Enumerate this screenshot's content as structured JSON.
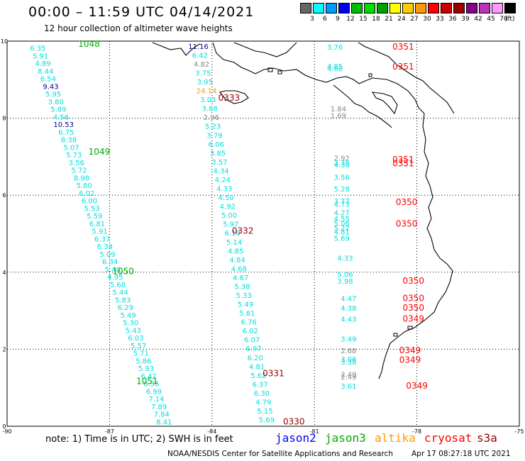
{
  "header": {
    "title": "00:00 – 11:59 UTC 04/14/2021",
    "subtitle": "12 hour collection of altimeter wave heights"
  },
  "legend": {
    "unit": "(ft)",
    "swatches": [
      {
        "label": "3",
        "color": "#666666"
      },
      {
        "label": "6",
        "color": "#00ffff"
      },
      {
        "label": "9",
        "color": "#0099ff"
      },
      {
        "label": "12",
        "color": "#0000ee"
      },
      {
        "label": "15",
        "color": "#00bb00"
      },
      {
        "label": "18",
        "color": "#00dd00"
      },
      {
        "label": "21",
        "color": "#00a000"
      },
      {
        "label": "24",
        "color": "#ffff00"
      },
      {
        "label": "27",
        "color": "#ffcc00"
      },
      {
        "label": "30",
        "color": "#ff9900"
      },
      {
        "label": "33",
        "color": "#ff0000"
      },
      {
        "label": "36",
        "color": "#cc0000"
      },
      {
        "label": "39",
        "color": "#990000"
      },
      {
        "label": "42",
        "color": "#880088"
      },
      {
        "label": "45",
        "color": "#bb33bb"
      },
      {
        "label": "70",
        "color": "#ff99ff"
      },
      {
        "label": "",
        "color": "#000000"
      }
    ]
  },
  "footer": {
    "note": "note: 1) Time is in UTC; 2) SWH is in feet",
    "missions": [
      {
        "label": "jason2",
        "color": "#0000ff"
      },
      {
        "label": "jason3",
        "color": "#00aa00"
      },
      {
        "label": "altika",
        "color": "#ff9900"
      },
      {
        "label": "cryosat",
        "color": "#ff0000"
      },
      {
        "label": "s3a",
        "color": "#990000"
      }
    ],
    "credit": "NOAA/NESDIS Center for Satellite Applications and Research",
    "timestamp": "Apr 17 08:27:18 UTC 2021"
  },
  "chart_data": {
    "type": "scatter",
    "title": "00:00 – 11:59 UTC 04/14/2021",
    "xlim": [
      -90,
      -75
    ],
    "ylim": [
      0,
      10
    ],
    "xticks": [
      -90,
      -87,
      -84,
      -81,
      -78,
      -75
    ],
    "yticks": [
      0,
      2,
      4,
      6,
      8,
      10
    ],
    "grid": true,
    "colors": {
      "cyan": "#00dddd",
      "jason2": "#0000ff",
      "jason3": "#00aa00",
      "altika": "#ff9900",
      "cryosat": "#ff0000",
      "s3a": "#990000",
      "gray": "#888888",
      "navy": "#000080"
    },
    "tracks": [
      {
        "pass": "1048",
        "pass_color": "jason3",
        "pass_pos": [
          -87.6,
          9.85
        ],
        "x0": -89.1,
        "x1": -85.4,
        "y0": 9.75,
        "y1": 0.05,
        "values": [
          "6.35",
          "5.91",
          "4.89",
          "8.44",
          "6.54",
          "9.43",
          "5.95",
          "3.80",
          "5.89",
          "4.56",
          "10.53",
          "6.75",
          "8.38",
          "5.07",
          "5.73",
          "3.56",
          "5.72",
          "8.98",
          "5.80",
          "6.02",
          "6.00",
          "5.53",
          "5.59",
          "6.81",
          "5.91",
          "6.37",
          "6.34",
          "5.09",
          "6.34",
          "5.48",
          "4.95",
          "5.68",
          "5.44",
          "5.83",
          "6.29",
          "5.49",
          "5.30",
          "5.43",
          "6.03",
          "5.57",
          "5.71",
          "5.86",
          "5.93",
          "6.42",
          "6.35",
          "6.99",
          "7.14",
          "7.89",
          "7.84",
          "8.41"
        ],
        "colors": {
          "5": "navy",
          "10": "navy"
        }
      },
      {
        "pass": "1049",
        "pass_color": "jason3",
        "pass_pos": [
          -87.3,
          7.05
        ],
        "standalone": true
      },
      {
        "pass": "1050",
        "pass_color": "jason3",
        "pass_pos": [
          -86.6,
          3.95
        ],
        "standalone": true
      },
      {
        "pass": "1051",
        "pass_color": "jason3",
        "pass_pos": [
          -85.9,
          1.1
        ],
        "standalone": true
      },
      {
        "pass": "0333",
        "pass_color": "s3a",
        "pass_pos": [
          -83.5,
          8.45
        ],
        "x0": -84.4,
        "x1": -82.4,
        "y0": 9.8,
        "y1": 0.1,
        "values": [
          "11.16",
          "6.42",
          "4.82",
          "3.75",
          "3.95",
          "24.14",
          "3.03",
          "3.88",
          "2.96",
          "5.23",
          "3.79",
          "6.06",
          "3.85",
          "3.57",
          "4.34",
          "4.24",
          "4.33",
          "4.50",
          "4.92",
          "5.00",
          "5.97",
          "6.10",
          "5.14",
          "4.85",
          "4.84",
          "4.68",
          "4.67",
          "5.38",
          "5.33",
          "5.49",
          "5.81",
          "6.76",
          "6.02",
          "6.07",
          "6.97",
          "6.20",
          "4.81",
          "5.62",
          "6.37",
          "6.30",
          "4.79",
          "5.15",
          "5.69"
        ],
        "colors": {
          "0": "navy",
          "2": "gray",
          "5": "altika",
          "8": "gray"
        }
      },
      {
        "pass": "0332",
        "pass_color": "s3a",
        "pass_pos": [
          -83.1,
          5.0
        ],
        "standalone": true
      },
      {
        "pass": "0331",
        "pass_color": "s3a",
        "pass_pos": [
          -82.2,
          1.3
        ],
        "standalone": true
      },
      {
        "pass": "0330",
        "pass_color": "s3a",
        "pass_pos": [
          -81.6,
          0.05
        ],
        "standalone": true
      }
    ],
    "points": [
      {
        "x": -80.4,
        "y": 9.78,
        "v": "3.76",
        "c": "cyan"
      },
      {
        "x": -80.4,
        "y": 9.28,
        "v": "4.85",
        "c": "cyan"
      },
      {
        "x": -80.4,
        "y": 9.22,
        "v": "4.66",
        "c": "cyan"
      },
      {
        "x": -80.3,
        "y": 8.18,
        "v": "1.84",
        "c": "gray"
      },
      {
        "x": -80.3,
        "y": 8.0,
        "v": "1.69",
        "c": "gray"
      },
      {
        "x": -80.2,
        "y": 6.9,
        "v": "2.92",
        "c": "gray"
      },
      {
        "x": -80.2,
        "y": 6.78,
        "v": "3.35",
        "c": "cyan"
      },
      {
        "x": -80.2,
        "y": 6.72,
        "v": "4.30",
        "c": "cyan"
      },
      {
        "x": -80.2,
        "y": 6.4,
        "v": "3.56",
        "c": "cyan"
      },
      {
        "x": -80.2,
        "y": 6.1,
        "v": "5.28",
        "c": "cyan"
      },
      {
        "x": -80.2,
        "y": 5.78,
        "v": "3.77",
        "c": "cyan"
      },
      {
        "x": -80.2,
        "y": 5.7,
        "v": "4.73",
        "c": "cyan"
      },
      {
        "x": -80.2,
        "y": 5.48,
        "v": "4.27",
        "c": "cyan"
      },
      {
        "x": -80.2,
        "y": 5.32,
        "v": "4.55",
        "c": "cyan"
      },
      {
        "x": -80.2,
        "y": 5.2,
        "v": "5.06",
        "c": "cyan"
      },
      {
        "x": -80.2,
        "y": 5.08,
        "v": "5.22",
        "c": "cyan"
      },
      {
        "x": -80.2,
        "y": 4.98,
        "v": "4.81",
        "c": "cyan"
      },
      {
        "x": -80.2,
        "y": 4.82,
        "v": "5.69",
        "c": "cyan"
      },
      {
        "x": -80.1,
        "y": 4.3,
        "v": "4.33",
        "c": "cyan"
      },
      {
        "x": -80.1,
        "y": 3.88,
        "v": "5.06",
        "c": "cyan"
      },
      {
        "x": -80.1,
        "y": 3.7,
        "v": "3.98",
        "c": "cyan"
      },
      {
        "x": -80.0,
        "y": 3.25,
        "v": "4.47",
        "c": "cyan"
      },
      {
        "x": -80.0,
        "y": 3.0,
        "v": "4.38",
        "c": "cyan"
      },
      {
        "x": -80.0,
        "y": 2.72,
        "v": "4.43",
        "c": "cyan"
      },
      {
        "x": -80.0,
        "y": 2.2,
        "v": "3.49",
        "c": "cyan"
      },
      {
        "x": -80.0,
        "y": 1.9,
        "v": "2.68",
        "c": "gray"
      },
      {
        "x": -80.0,
        "y": 1.68,
        "v": "3.06",
        "c": "cyan"
      },
      {
        "x": -80.0,
        "y": 1.6,
        "v": "3.38",
        "c": "cyan"
      },
      {
        "x": -80.0,
        "y": 1.28,
        "v": "2.49",
        "c": "gray"
      },
      {
        "x": -80.0,
        "y": 1.22,
        "v": "2.49",
        "c": "gray"
      },
      {
        "x": -80.0,
        "y": 0.98,
        "v": "3.61",
        "c": "cyan"
      }
    ],
    "pass_labels": [
      {
        "x": -78.4,
        "y": 9.78,
        "v": "0351",
        "c": "cryosat"
      },
      {
        "x": -78.4,
        "y": 9.26,
        "v": "0351",
        "c": "cryosat"
      },
      {
        "x": -78.4,
        "y": 6.85,
        "v": "0351",
        "c": "cryosat"
      },
      {
        "x": -78.4,
        "y": 6.75,
        "v": "0351",
        "c": "cryosat"
      },
      {
        "x": -78.3,
        "y": 5.75,
        "v": "0350",
        "c": "cryosat"
      },
      {
        "x": -78.3,
        "y": 5.18,
        "v": "0350",
        "c": "cryosat"
      },
      {
        "x": -78.1,
        "y": 3.7,
        "v": "0350",
        "c": "cryosat"
      },
      {
        "x": -78.1,
        "y": 3.25,
        "v": "0350",
        "c": "cryosat"
      },
      {
        "x": -78.1,
        "y": 3.0,
        "v": "0350",
        "c": "cryosat"
      },
      {
        "x": -78.1,
        "y": 2.72,
        "v": "0349",
        "c": "cryosat"
      },
      {
        "x": -78.2,
        "y": 1.9,
        "v": "0349",
        "c": "cryosat"
      },
      {
        "x": -78.2,
        "y": 1.65,
        "v": "0349",
        "c": "cryosat"
      },
      {
        "x": -78.0,
        "y": 0.98,
        "v": "0349",
        "c": "cryosat"
      }
    ]
  }
}
